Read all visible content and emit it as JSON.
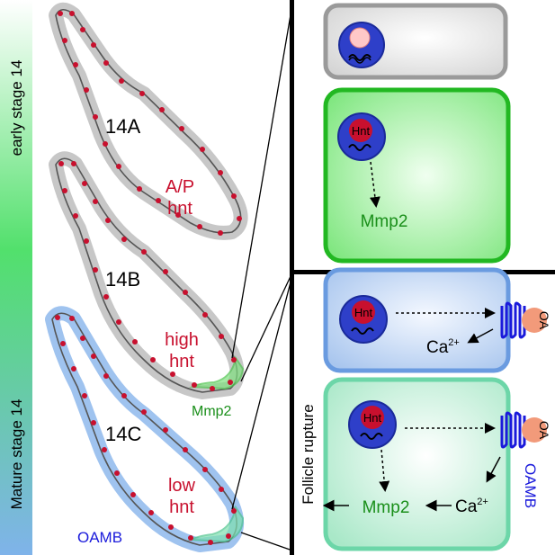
{
  "stage_bar": {
    "top_label": "early stage 14",
    "bottom_label": "Mature stage 14",
    "color_top": "#ffffff",
    "color_mid": "#52e06c",
    "color_bottom": "#7fb3ea"
  },
  "follicles": [
    {
      "stage": "14A",
      "hnt_line1": "A/P",
      "hnt_line2": "hnt"
    },
    {
      "stage": "14B",
      "hnt_line1": "high",
      "hnt_line2": "hnt",
      "mmp2_label": "Mmp2"
    },
    {
      "stage": "14C",
      "hnt_line1": "low",
      "hnt_line2": "hnt",
      "oamb_label": "OAMB"
    }
  ],
  "cells": {
    "top_right": {
      "nucleus_label": "Hnt",
      "output_label": "Mmp2"
    },
    "bottom_right": {
      "upper": {
        "nucleus_label": "Hnt",
        "calcium_label": "Ca",
        "calcium_sup": "2+",
        "receptor_ligand": "OA"
      },
      "lower": {
        "nucleus_label": "Hnt",
        "mmp2_label": "Mmp2",
        "calcium_label": "Ca",
        "calcium_sup": "2+",
        "receptor_ligand": "OA",
        "receptor_label": "OAMB"
      },
      "side_label": "Follicle rupture"
    }
  },
  "colors": {
    "hnt_text": "#c8102e",
    "mmp2_text": "#1a8f1a",
    "oamb_text": "#1a1adb",
    "nucleus_fill": "#2e3fc9",
    "red_dot": "#c8102e"
  }
}
